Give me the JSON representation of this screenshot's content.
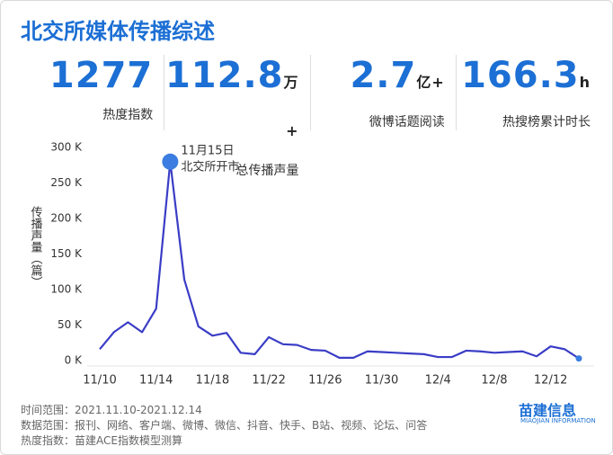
{
  "header": {
    "title": "北交所媒体传播综述"
  },
  "stats": [
    {
      "value": "1277",
      "unit": "",
      "label": "热度指数"
    },
    {
      "value": "112.8",
      "unit": "万+",
      "label": "总传播声量"
    },
    {
      "value": "2.7",
      "unit": "亿+",
      "label": "微博话题阅读"
    },
    {
      "value": "166.3",
      "unit": "h",
      "label": "热搜榜累计时长"
    }
  ],
  "chart_data": {
    "type": "line",
    "y_label": "传播声量（篇）",
    "categories": [
      "11/10",
      null,
      null,
      null,
      "11/14",
      null,
      null,
      null,
      "11/18",
      null,
      null,
      null,
      "11/22",
      null,
      null,
      null,
      "11/26",
      null,
      null,
      null,
      "11/30",
      null,
      null,
      null,
      "12/4",
      null,
      null,
      null,
      "12/8",
      null,
      null,
      null,
      "12/12",
      null,
      null
    ],
    "values": [
      16000,
      40000,
      54000,
      40000,
      73000,
      280000,
      114000,
      48000,
      35000,
      39000,
      11000,
      9000,
      33000,
      23000,
      22000,
      15000,
      14000,
      4000,
      4000,
      13000,
      12000,
      11000,
      10000,
      9000,
      5000,
      5000,
      14000,
      13000,
      11000,
      12000,
      13000,
      6000,
      20000,
      16000,
      3000
    ],
    "color": "#3a3dc6",
    "ylim": [
      0,
      300000
    ],
    "yticks": [
      {
        "value": 0,
        "label": "0 K"
      },
      {
        "value": 50000,
        "label": "50 K"
      },
      {
        "value": 100000,
        "label": "100 K"
      },
      {
        "value": 150000,
        "label": "150 K"
      },
      {
        "value": 200000,
        "label": "200 K"
      },
      {
        "value": 250000,
        "label": "250 K"
      },
      {
        "value": 300000,
        "label": "300 K"
      }
    ],
    "grid": false,
    "annotation": {
      "index": 5,
      "lines": [
        "11月15日",
        "北交所开市"
      ]
    }
  },
  "footer": {
    "lines": [
      "时间范围：2021.11.10-2021.12.14",
      "数据范围：报刊、网络、客户端、微博、微信、抖音、快手、B站、视频、论坛、问答",
      "热度指数：苗建ACE指数模型测算"
    ],
    "logo": {
      "name": "苗建信息",
      "sub": "MIAOJIAN INFORMATION"
    }
  }
}
